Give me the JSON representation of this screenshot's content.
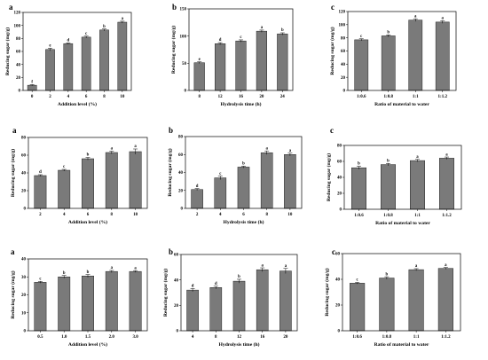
{
  "chart_data": [
    {
      "panel": "a",
      "type": "bar",
      "categories": [
        "0",
        "2",
        "4",
        "6",
        "8",
        "10"
      ],
      "values": [
        8,
        63,
        72,
        82,
        93,
        105
      ],
      "errors": [
        1,
        2,
        1,
        1.5,
        1.5,
        1.5
      ],
      "significance": [
        "f",
        "e",
        "d",
        "c",
        "b",
        "a"
      ],
      "xlabel": "Addition level (%)",
      "ylabel": "Reducing sugar (mg/g)",
      "ylim": [
        0,
        120
      ],
      "yticks": [
        "0",
        "20",
        "40",
        "60",
        "80",
        "100",
        "120"
      ]
    },
    {
      "panel": "b",
      "type": "bar",
      "categories": [
        "8",
        "12",
        "16",
        "20",
        "24"
      ],
      "values": [
        51,
        86,
        91,
        109,
        104
      ],
      "errors": [
        1.5,
        2,
        2,
        2,
        2
      ],
      "significance": [
        "e",
        "d",
        "c",
        "a",
        "b"
      ],
      "xlabel": "Hydrolysis time (h)",
      "ylabel": "Reducing sugar (mg/g)",
      "ylim": [
        0,
        150
      ],
      "yticks": [
        "0",
        "50",
        "100",
        "150"
      ]
    },
    {
      "panel": "c",
      "type": "bar",
      "categories": [
        "1:0.6",
        "1:0.8",
        "1:1",
        "1:1.2"
      ],
      "values": [
        77,
        83,
        107,
        104
      ],
      "errors": [
        1.5,
        1.5,
        2,
        2
      ],
      "significance": [
        "c",
        "b",
        "a",
        "a"
      ],
      "xlabel": "Ratio of material to water",
      "ylabel": "Reducing sugar (mg/g)",
      "ylim": [
        0,
        120
      ],
      "yticks": [
        "0",
        "20",
        "40",
        "60",
        "80",
        "100",
        "120"
      ]
    },
    {
      "panel": "a",
      "type": "bar",
      "categories": [
        "2",
        "4",
        "6",
        "8",
        "10"
      ],
      "values": [
        37,
        43,
        56,
        63,
        64
      ],
      "errors": [
        1,
        1,
        1.5,
        1.5,
        3
      ],
      "significance": [
        "d",
        "c",
        "b",
        "a",
        "a"
      ],
      "xlabel": "Addition level (%)",
      "ylabel": "Reducing sugar (mg/g)",
      "ylim": [
        0,
        80
      ],
      "yticks": [
        "0",
        "20",
        "40",
        "60",
        "80"
      ]
    },
    {
      "panel": "b",
      "type": "bar",
      "categories": [
        "2",
        "4",
        "6",
        "8",
        "10"
      ],
      "values": [
        21,
        34,
        46,
        62,
        60
      ],
      "errors": [
        1,
        2,
        1,
        2,
        1.5
      ],
      "significance": [
        "d",
        "c",
        "b",
        "a",
        "a"
      ],
      "xlabel": "Hydrolysis time (h)",
      "ylabel": "Reducing sugar (mg/g)",
      "ylim": [
        0,
        80
      ],
      "yticks": [
        "0",
        "20",
        "40",
        "60",
        "80"
      ]
    },
    {
      "panel": "c",
      "type": "bar",
      "categories": [
        "1:0.6",
        "1:0.8",
        "1:1",
        "1:1.2"
      ],
      "values": [
        52,
        56,
        61,
        64
      ],
      "errors": [
        2,
        1.5,
        1.5,
        1.5
      ],
      "significance": [
        "b",
        "b",
        "a",
        "a"
      ],
      "xlabel": "Ratio of material to water",
      "ylabel": "Reducing sugar (mg/g)",
      "ylim": [
        0,
        80
      ],
      "yticks": [
        "0",
        "20",
        "40",
        "60",
        "80"
      ]
    },
    {
      "panel": "a",
      "type": "bar",
      "categories": [
        "0.5",
        "1.0",
        "1.5",
        "2.0",
        "3.0"
      ],
      "values": [
        27,
        30,
        30.5,
        33,
        33
      ],
      "errors": [
        0.5,
        0.8,
        0.8,
        0.6,
        0.5
      ],
      "significance": [
        "c",
        "b",
        "b",
        "a",
        "a"
      ],
      "xlabel": "Addition level (%)",
      "ylabel": "Reducing sugar (mg/g)",
      "ylim": [
        0,
        40
      ],
      "yticks": [
        "0",
        "10",
        "20",
        "30",
        "40"
      ]
    },
    {
      "panel": "b",
      "type": "bar",
      "categories": [
        "4",
        "8",
        "12",
        "16",
        "20"
      ],
      "values": [
        32,
        34,
        39,
        48,
        47
      ],
      "errors": [
        1.2,
        1,
        1.5,
        1.5,
        2
      ],
      "significance": [
        "d",
        "d",
        "b",
        "a",
        "a"
      ],
      "xlabel": "Hydrolysis time (h)",
      "ylabel": "Reducing sugar (mg/g)",
      "ylim": [
        0,
        60
      ],
      "yticks": [
        "0",
        "20",
        "40",
        "60"
      ]
    },
    {
      "panel": "c",
      "type": "bar",
      "categories": [
        "1:0.6",
        "1:0.8",
        "1:1",
        "1:1.2"
      ],
      "values": [
        37,
        41,
        47.5,
        48.5
      ],
      "errors": [
        0.6,
        1,
        0.8,
        0.7
      ],
      "significance": [
        "c",
        "b",
        "a",
        "a"
      ],
      "xlabel": "Ratio of material to water",
      "ylabel": "Reducing sugar (mg/g)",
      "ylim": [
        0,
        60
      ],
      "yticks": [
        "0",
        "20",
        "40",
        "60"
      ]
    }
  ]
}
